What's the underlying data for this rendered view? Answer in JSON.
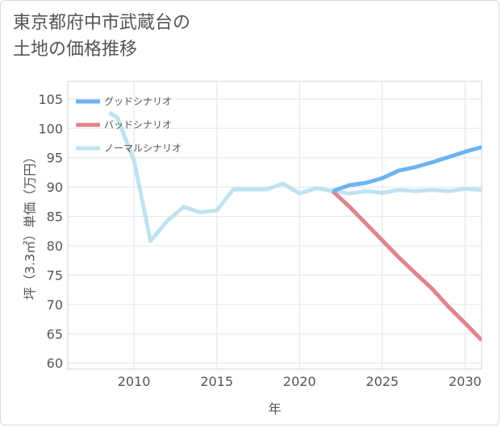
{
  "page": {
    "title_lines": [
      "東京都府中市武蔵台の",
      "土地の価格推移"
    ]
  },
  "chart_data": {
    "type": "line",
    "xlabel": "年",
    "ylabel": "坪（3.3㎡）単価（万円）",
    "xlim": [
      2006,
      2031
    ],
    "ylim": [
      59,
      108
    ],
    "x_ticks": [
      2010,
      2015,
      2020,
      2025,
      2030
    ],
    "y_ticks": [
      60,
      65,
      70,
      75,
      80,
      85,
      90,
      95,
      100,
      105
    ],
    "grid": true,
    "legend_position": "top-left",
    "series": [
      {
        "name": "グッドシナリオ",
        "color": "#6cb4ee",
        "x": [
          2022,
          2023,
          2024,
          2025,
          2026,
          2027,
          2028,
          2029,
          2030,
          2031
        ],
        "y": [
          89.3,
          90.3,
          90.7,
          91.5,
          92.8,
          93.4,
          94.2,
          95.1,
          96.0,
          96.8
        ]
      },
      {
        "name": "バッドシナリオ",
        "color": "#e0848c",
        "x": [
          2022,
          2023,
          2024,
          2025,
          2026,
          2027,
          2028,
          2029,
          2030,
          2031
        ],
        "y": [
          89.3,
          86.7,
          83.8,
          80.9,
          78.0,
          75.3,
          72.7,
          69.6,
          66.8,
          63.9
        ]
      },
      {
        "name": "ノーマルシナリオ",
        "color": "#bfe3f0",
        "x": [
          2008.5,
          2009,
          2010,
          2011,
          2012,
          2013,
          2014,
          2015,
          2016,
          2017,
          2018,
          2019,
          2020,
          2021,
          2022,
          2023,
          2024,
          2025,
          2026,
          2027,
          2028,
          2029,
          2030,
          2031
        ],
        "y": [
          102.7,
          101.8,
          94.5,
          80.8,
          84.2,
          86.6,
          85.7,
          86.0,
          89.6,
          89.6,
          89.6,
          90.6,
          88.9,
          89.8,
          89.3,
          88.9,
          89.3,
          89.0,
          89.5,
          89.3,
          89.5,
          89.3,
          89.7,
          89.5
        ]
      }
    ]
  }
}
